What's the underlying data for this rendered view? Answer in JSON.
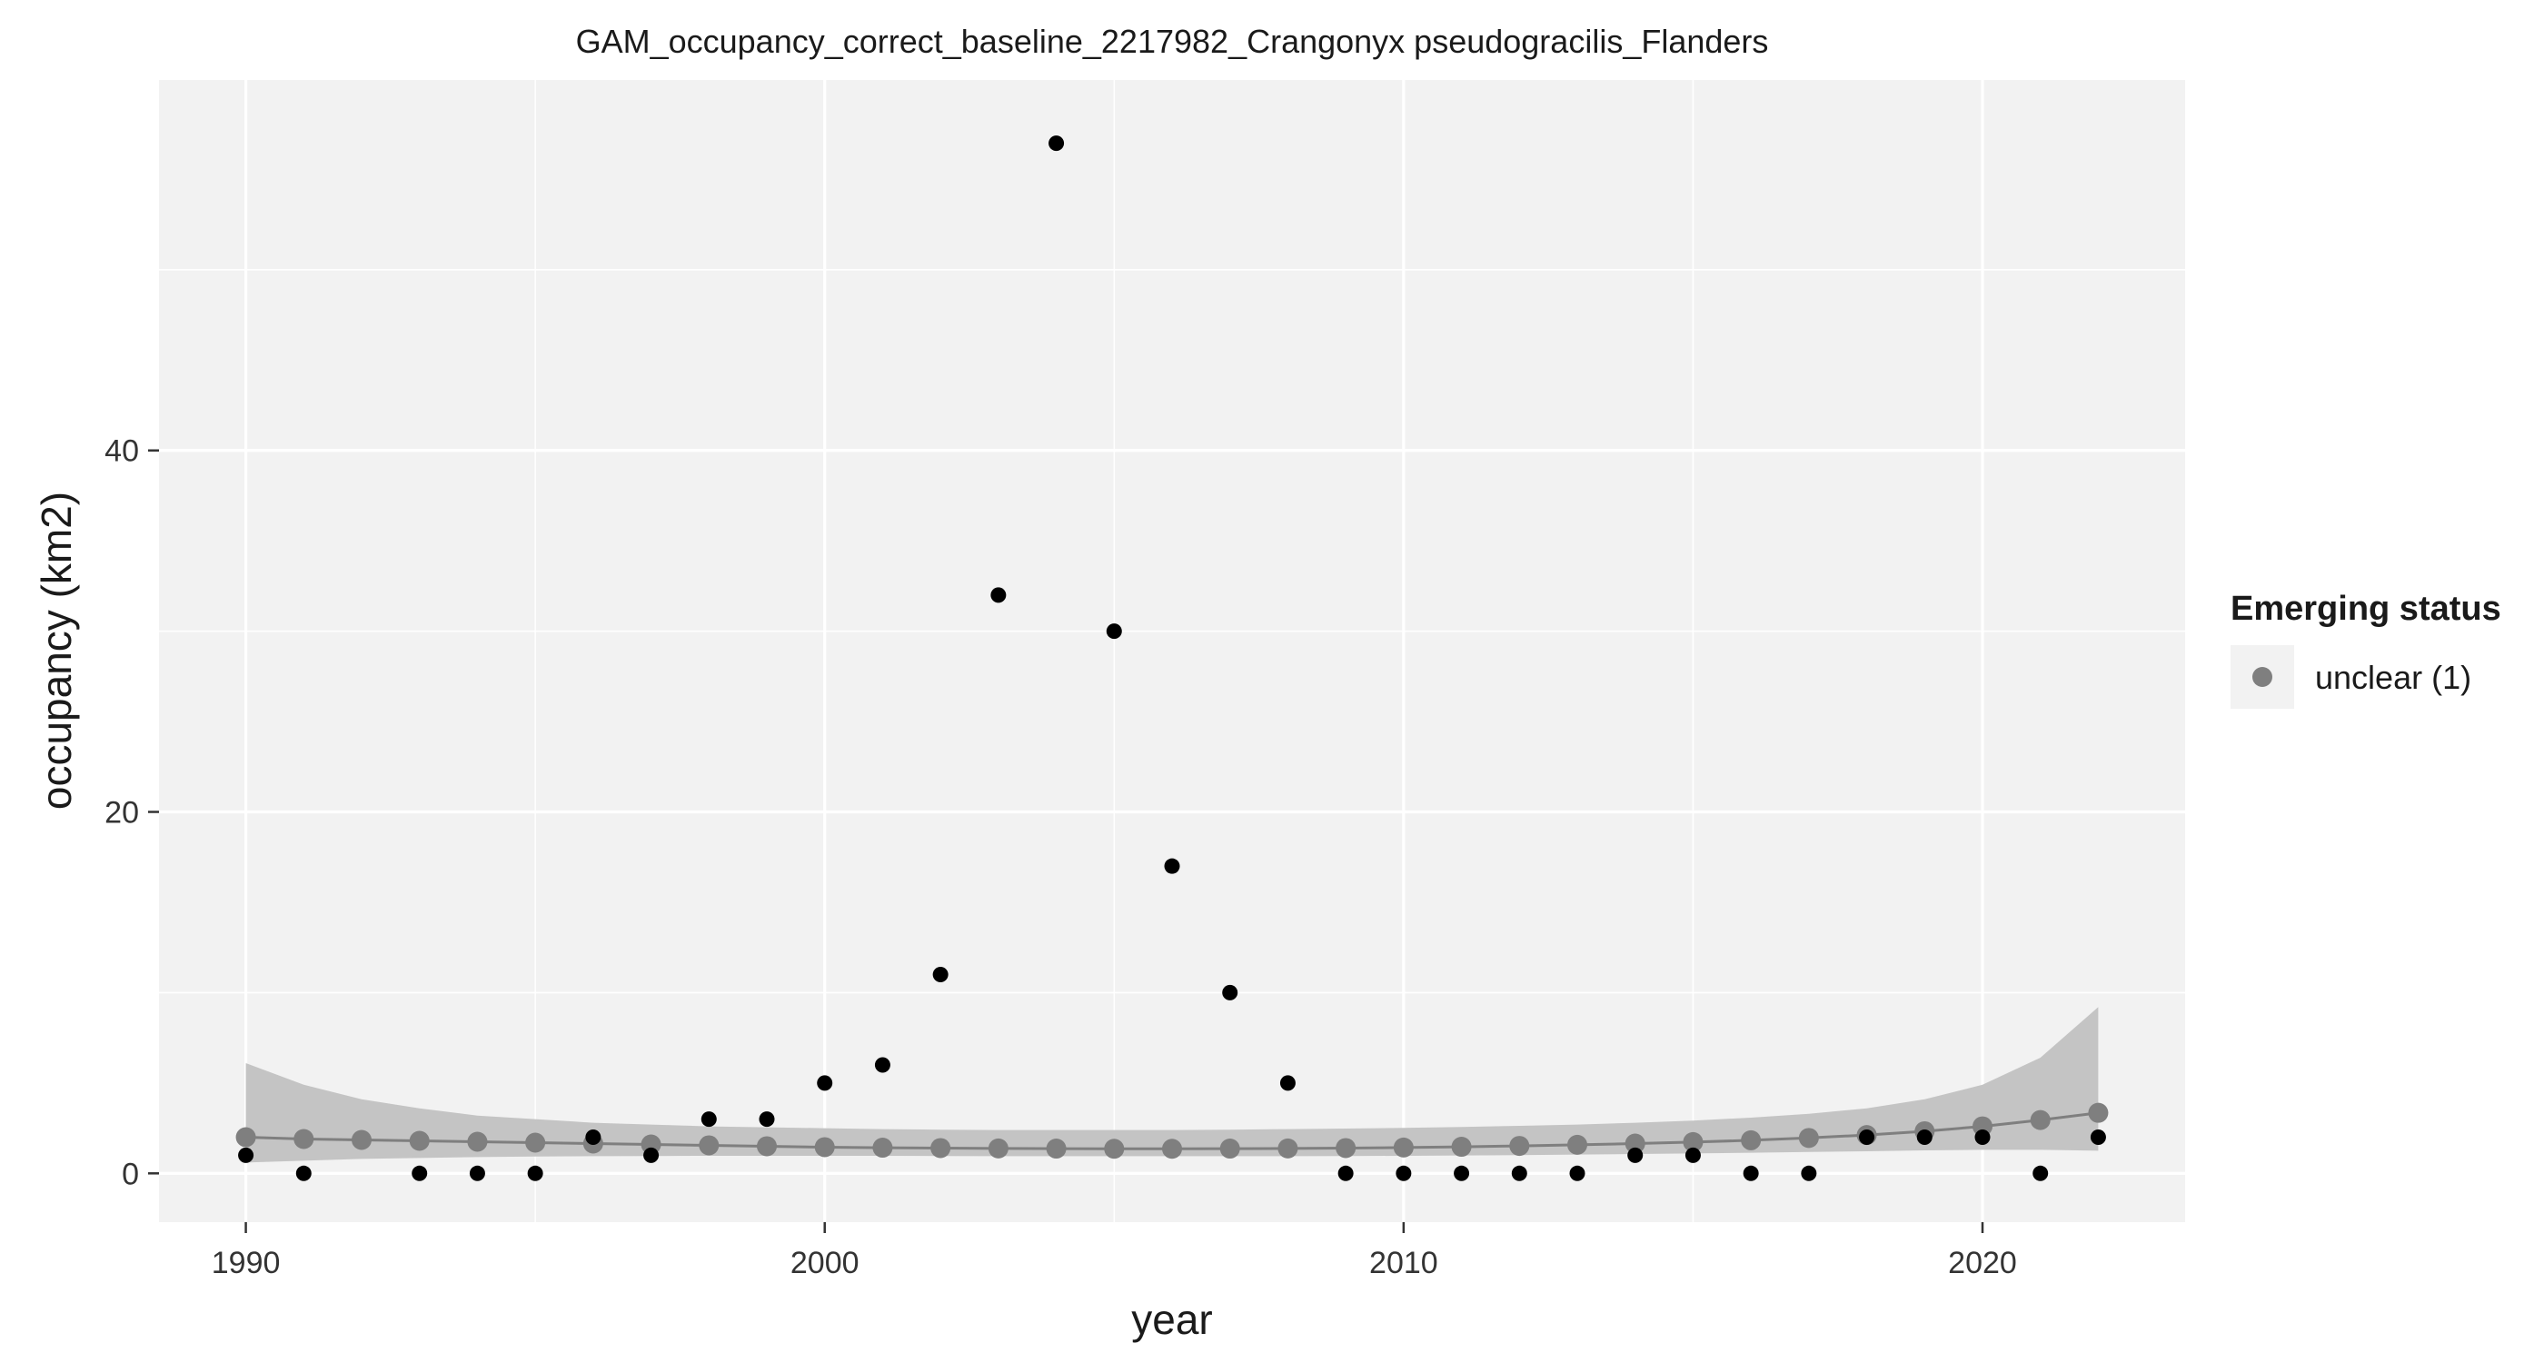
{
  "chart_data": {
    "type": "scatter",
    "title": "GAM_occupancy_correct_baseline_2217982_Crangonyx pseudogracilis_Flanders",
    "xlabel": "year",
    "ylabel": "occupancy (km2)",
    "xlim": [
      1988.5,
      2023.5
    ],
    "ylim": [
      -2.7,
      60.5
    ],
    "x_ticks": [
      1990,
      2000,
      2010,
      2020
    ],
    "x_tick_labels": [
      "1990",
      "2000",
      "2010",
      "2020"
    ],
    "y_ticks": [
      0,
      20,
      40
    ],
    "y_tick_labels": [
      "0",
      "20",
      "40"
    ],
    "grid": true,
    "legend": {
      "title": "Emerging status",
      "position": "right",
      "entries": [
        {
          "label": "unclear (1)",
          "color": "#7f7f7f"
        }
      ]
    },
    "observed": {
      "color": "#000000",
      "x": [
        1990,
        1991,
        1993,
        1994,
        1995,
        1996,
        1997,
        1998,
        1999,
        2000,
        2001,
        2002,
        2003,
        2004,
        2005,
        2006,
        2007,
        2008,
        2009,
        2010,
        2011,
        2012,
        2013,
        2014,
        2015,
        2016,
        2017,
        2018,
        2019,
        2020,
        2021,
        2022
      ],
      "y": [
        1,
        0,
        0,
        0,
        0,
        2,
        1,
        3,
        3,
        5,
        6,
        11,
        32,
        57,
        30,
        17,
        10,
        5,
        0,
        0,
        0,
        0,
        0,
        1,
        1,
        0,
        0,
        2,
        2,
        2,
        0,
        2
      ]
    },
    "fitted": {
      "name": "unclear (1)",
      "color": "#7f7f7f",
      "x": [
        1990,
        1991,
        1992,
        1993,
        1994,
        1995,
        1996,
        1997,
        1998,
        1999,
        2000,
        2001,
        2002,
        2003,
        2004,
        2005,
        2006,
        2007,
        2008,
        2009,
        2010,
        2011,
        2012,
        2013,
        2014,
        2015,
        2016,
        2017,
        2018,
        2019,
        2020,
        2021,
        2022
      ],
      "y": [
        2.0,
        1.9,
        1.85,
        1.8,
        1.75,
        1.7,
        1.65,
        1.6,
        1.55,
        1.5,
        1.45,
        1.42,
        1.4,
        1.38,
        1.37,
        1.36,
        1.36,
        1.37,
        1.38,
        1.4,
        1.43,
        1.47,
        1.52,
        1.58,
        1.65,
        1.73,
        1.83,
        1.96,
        2.12,
        2.33,
        2.6,
        2.95,
        3.35
      ],
      "lower": [
        0.6,
        0.7,
        0.8,
        0.85,
        0.9,
        0.93,
        0.95,
        0.96,
        0.97,
        0.97,
        0.97,
        0.97,
        0.96,
        0.95,
        0.95,
        0.95,
        0.95,
        0.95,
        0.95,
        0.96,
        0.97,
        0.99,
        1.01,
        1.04,
        1.07,
        1.1,
        1.14,
        1.18,
        1.22,
        1.27,
        1.3,
        1.3,
        1.25
      ],
      "upper": [
        6.1,
        4.9,
        4.1,
        3.6,
        3.2,
        3.0,
        2.8,
        2.7,
        2.6,
        2.55,
        2.5,
        2.45,
        2.42,
        2.4,
        2.4,
        2.4,
        2.4,
        2.42,
        2.45,
        2.48,
        2.52,
        2.57,
        2.63,
        2.7,
        2.8,
        2.92,
        3.08,
        3.3,
        3.6,
        4.1,
        4.9,
        6.4,
        9.2
      ]
    },
    "colors": {
      "panel_background": "#f2f2f2",
      "grid_major": "#ffffff",
      "ribbon": "#c4c4c4"
    }
  }
}
